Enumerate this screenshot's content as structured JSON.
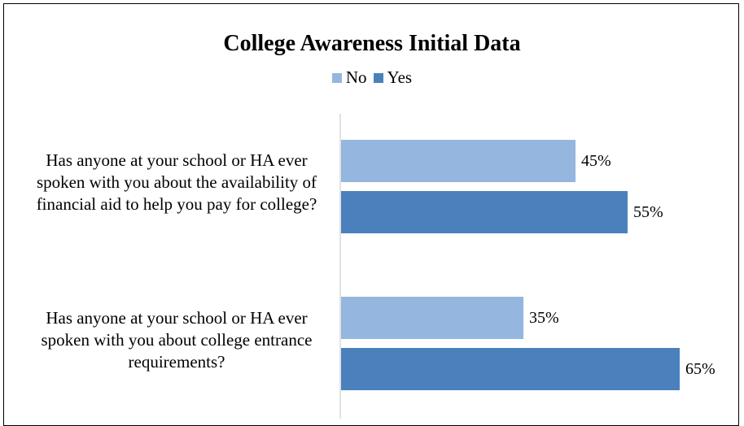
{
  "chart_data": {
    "type": "bar",
    "orientation": "horizontal",
    "title": "College Awareness Initial Data",
    "categories": [
      "Has anyone at your school or HA ever spoken with you about the availability of financial aid to help you pay for college?",
      "Has anyone at your school or HA ever spoken with you about college entrance requirements?"
    ],
    "category_lines": [
      [
        "Has anyone at your school or HA ever",
        "spoken with you about the availability of",
        "financial aid to help you pay for college?"
      ],
      [
        "Has anyone at your school or HA ever",
        "spoken with you about college entrance",
        "requirements?"
      ]
    ],
    "series": [
      {
        "name": "No",
        "values": [
          45,
          35
        ],
        "labels": [
          "45%",
          "35%"
        ],
        "color": "#95b6de"
      },
      {
        "name": "Yes",
        "values": [
          55,
          65
        ],
        "labels": [
          "55%",
          "65%"
        ],
        "color": "#4a81bd"
      }
    ],
    "xlim": [
      0,
      100
    ],
    "unit": "%",
    "grid": false,
    "legend_position": "top"
  }
}
